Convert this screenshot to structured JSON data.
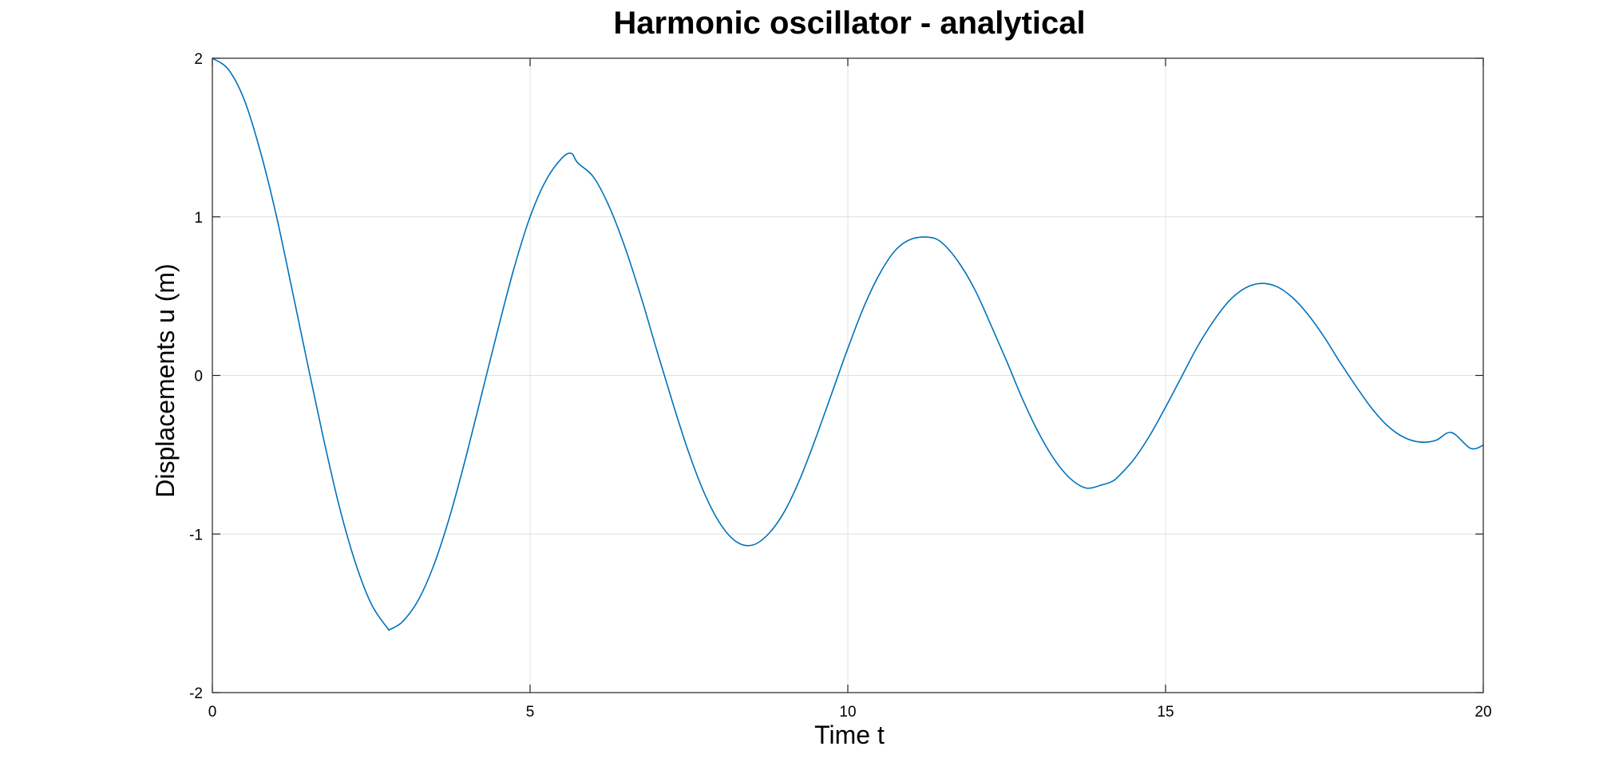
{
  "chart_data": {
    "type": "line",
    "title": "Harmonic oscillator - analytical",
    "xlabel": "Time t",
    "ylabel": "Displacements u (m)",
    "xlim": [
      0,
      20
    ],
    "ylim": [
      -2,
      2
    ],
    "x_ticks": [
      0,
      5,
      10,
      15,
      20
    ],
    "x_tick_labels": [
      "0",
      "5",
      "10",
      "15",
      "20"
    ],
    "y_ticks": [
      2,
      1,
      0,
      -1,
      -2
    ],
    "y_tick_labels": [
      "2",
      "1",
      "0",
      "-1",
      "-2"
    ],
    "grid": true,
    "legend": "none",
    "series": [
      {
        "color": "#0072bd",
        "x": [
          0,
          0.25,
          0.5,
          0.75,
          1.0,
          1.25,
          1.5,
          1.75,
          2.0,
          2.25,
          2.5,
          2.75,
          2.8,
          3.0,
          3.25,
          3.5,
          3.75,
          4.0,
          4.25,
          4.5,
          4.75,
          5.0,
          5.25,
          5.5,
          5.65,
          5.75,
          6.0,
          6.25,
          6.5,
          6.75,
          7.0,
          7.25,
          7.5,
          7.75,
          8.0,
          8.25,
          8.5,
          8.75,
          9.0,
          9.25,
          9.5,
          9.75,
          10.0,
          10.25,
          10.5,
          10.75,
          11.0,
          11.3,
          11.5,
          11.75,
          12.0,
          12.25,
          12.5,
          12.75,
          13.0,
          13.25,
          13.5,
          13.75,
          14.0,
          14.15,
          14.25,
          14.5,
          14.75,
          15.0,
          15.25,
          15.5,
          15.75,
          16.0,
          16.25,
          16.5,
          16.75,
          17.0,
          17.25,
          17.5,
          17.75,
          18.0,
          18.25,
          18.5,
          18.75,
          19.0,
          19.25,
          19.5,
          19.8,
          20.0
        ],
        "y": [
          2.0,
          1.93,
          1.74,
          1.42,
          1.02,
          0.55,
          0.07,
          -0.4,
          -0.83,
          -1.18,
          -1.44,
          -1.59,
          -1.6,
          -1.55,
          -1.41,
          -1.18,
          -0.87,
          -0.5,
          -0.1,
          0.3,
          0.68,
          1.0,
          1.23,
          1.37,
          1.4,
          1.34,
          1.25,
          1.06,
          0.8,
          0.49,
          0.15,
          -0.18,
          -0.49,
          -0.75,
          -0.94,
          -1.05,
          -1.07,
          -1.0,
          -0.86,
          -0.65,
          -0.39,
          -0.11,
          0.17,
          0.43,
          0.64,
          0.79,
          0.86,
          0.87,
          0.83,
          0.71,
          0.54,
          0.32,
          0.09,
          -0.15,
          -0.36,
          -0.53,
          -0.65,
          -0.71,
          -0.69,
          -0.67,
          -0.64,
          -0.53,
          -0.38,
          -0.2,
          -0.01,
          0.18,
          0.34,
          0.47,
          0.55,
          0.58,
          0.56,
          0.49,
          0.38,
          0.24,
          0.08,
          -0.07,
          -0.21,
          -0.32,
          -0.39,
          -0.42,
          -0.41,
          -0.36,
          -0.46,
          -0.44
        ]
      }
    ]
  }
}
